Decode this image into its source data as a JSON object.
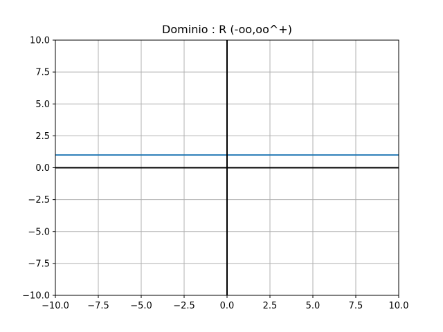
{
  "chart_data": {
    "type": "line",
    "title": "Dominio : R (-oo,oo^+)",
    "xlabel": "",
    "ylabel": "",
    "xlim": [
      -10,
      10
    ],
    "ylim": [
      -10,
      10
    ],
    "xticks": [
      -10,
      -7.5,
      -5,
      -2.5,
      0,
      2.5,
      5,
      7.5,
      10
    ],
    "yticks": [
      -10,
      -7.5,
      -5,
      -2.5,
      0,
      2.5,
      5,
      7.5,
      10
    ],
    "xtick_labels": [
      "−10.0",
      "−7.5",
      "−5.0",
      "−2.5",
      "0.0",
      "2.5",
      "5.0",
      "7.5",
      "10.0"
    ],
    "ytick_labels": [
      "−10.0",
      "−7.5",
      "−5.0",
      "−2.5",
      "0.0",
      "2.5",
      "5.0",
      "7.5",
      "10.0"
    ],
    "grid": true,
    "series": [
      {
        "x": [
          -10,
          10
        ],
        "y": [
          1,
          1
        ],
        "color": "#1f77b4"
      }
    ],
    "axis_lines": {
      "color": "#000000",
      "x": 0,
      "y": 0
    }
  }
}
